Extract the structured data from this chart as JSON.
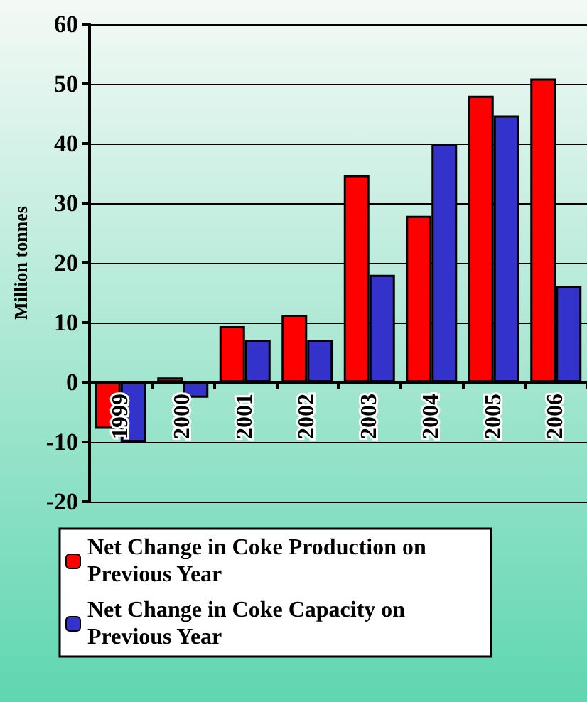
{
  "chart_data": {
    "type": "bar",
    "ylabel": "Million tonnes",
    "categories": [
      "1999",
      "2000",
      "2001",
      "2002",
      "2003",
      "2004",
      "2005",
      "2006"
    ],
    "series": [
      {
        "name": "Net Change in Coke Production on Previous Year",
        "color": "#ff0000",
        "values": [
          -7.8,
          0.8,
          9.4,
          11.3,
          34.7,
          27.9,
          48.0,
          50.9
        ]
      },
      {
        "name": "Net Change in Coke Capacity on Previous Year",
        "color": "#3333cc",
        "values": [
          -10,
          -2.6,
          7.1,
          7.1,
          18.0,
          40,
          44.7,
          16.1
        ]
      }
    ],
    "ylim": [
      -20,
      60
    ],
    "yticks": [
      -20,
      -10,
      0,
      10,
      20,
      30,
      40,
      50,
      60
    ],
    "grid": "y",
    "legend": "bottom"
  }
}
